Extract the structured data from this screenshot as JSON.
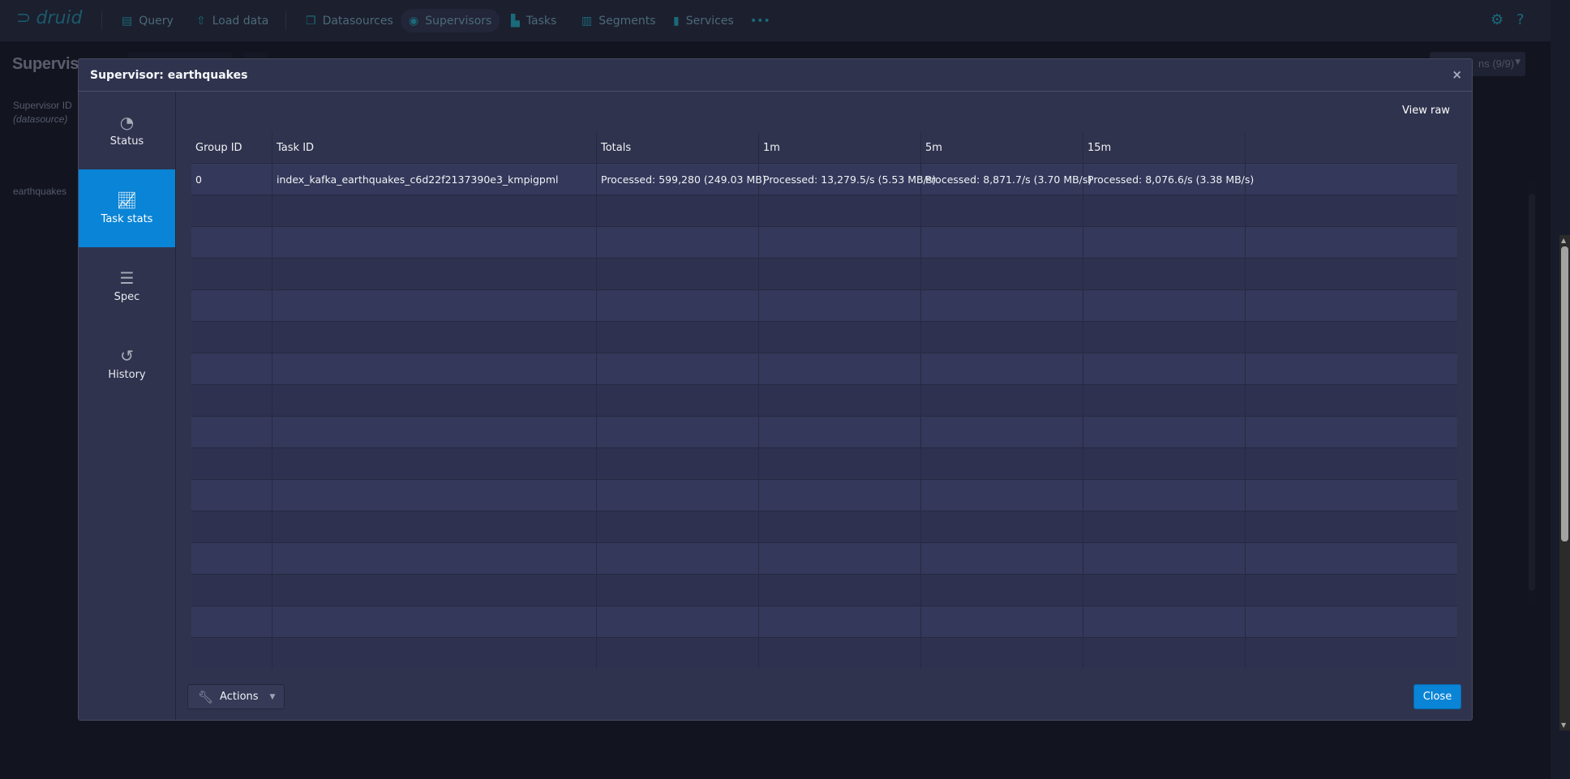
{
  "nav": {
    "logo": "druid",
    "items": [
      {
        "label": "Query",
        "icon": "document-icon"
      },
      {
        "label": "Load data",
        "icon": "cloud-upload-icon"
      },
      {
        "label": "Datasources",
        "icon": "multi-select-icon"
      },
      {
        "label": "Supervisors",
        "icon": "eye-icon",
        "active": true
      },
      {
        "label": "Tasks",
        "icon": "gantt-chart-icon"
      },
      {
        "label": "Segments",
        "icon": "stacked-chart-icon"
      },
      {
        "label": "Services",
        "icon": "database-icon"
      }
    ],
    "more": "•••"
  },
  "background": {
    "title": "Supervis",
    "supervisor_id_label": "Supervisor ID",
    "datasource_label": "(datasource)",
    "row_text": "earthquakes",
    "columns_dropdown": "ns (9/9)"
  },
  "dialog": {
    "title": "Supervisor: earthquakes",
    "close_glyph": "×",
    "tabs": [
      {
        "label": "Status",
        "icon": "dashboard-icon"
      },
      {
        "label": "Task stats",
        "icon": "trending-up-icon",
        "active": true
      },
      {
        "label": "Spec",
        "icon": "align-left-icon"
      },
      {
        "label": "History",
        "icon": "history-icon"
      }
    ],
    "view_raw": "View raw",
    "table": {
      "headers": [
        "Group ID",
        "Task ID",
        "Totals",
        "1m",
        "5m",
        "15m"
      ],
      "rows": [
        [
          "0",
          "index_kafka_earthquakes_c6d22f2137390e3_kmpigpml",
          "Processed: 599,280 (249.03 MB)",
          "Processed: 13,279.5/s (5.53 MB/s)",
          "Processed: 8,871.7/s (3.70 MB/s)",
          "Processed: 8,076.6/s (3.38 MB/s)"
        ]
      ]
    },
    "actions_label": "Actions",
    "close_label": "Close"
  },
  "colors": {
    "accent": "#0a84d6",
    "dialog_bg": "#30334e",
    "page_bg": "#181b29"
  }
}
